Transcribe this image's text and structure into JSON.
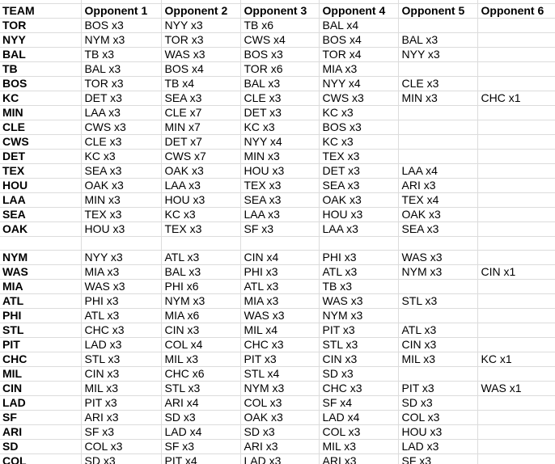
{
  "colors": {
    "gridline": "#dcdcdc",
    "text": "#000000",
    "background": "#ffffff"
  },
  "table": {
    "columns": [
      "TEAM",
      "Opponent 1",
      "Opponent 2",
      "Opponent 3",
      "Opponent 4",
      "Opponent 5",
      "Opponent 6"
    ],
    "rows": [
      {
        "team": "TOR",
        "opponents": [
          "BOS x3",
          "NYY x3",
          "TB x6",
          "BAL x4",
          "",
          ""
        ]
      },
      {
        "team": "NYY",
        "opponents": [
          "NYM x3",
          "TOR x3",
          "CWS x4",
          "BOS x4",
          "BAL x3",
          ""
        ]
      },
      {
        "team": "BAL",
        "opponents": [
          "TB x3",
          "WAS x3",
          "BOS x3",
          "TOR x4",
          "NYY x3",
          ""
        ]
      },
      {
        "team": "TB",
        "opponents": [
          "BAL x3",
          "BOS x4",
          "TOR x6",
          "MIA x3",
          "",
          ""
        ]
      },
      {
        "team": "BOS",
        "opponents": [
          "TOR x3",
          "TB x4",
          "BAL x3",
          "NYY x4",
          "CLE x3",
          ""
        ]
      },
      {
        "team": "KC",
        "opponents": [
          "DET x3",
          "SEA x3",
          "CLE x3",
          "CWS x3",
          "MIN x3",
          "CHC x1"
        ]
      },
      {
        "team": "MIN",
        "opponents": [
          "LAA x3",
          "CLE x7",
          "DET x3",
          "KC x3",
          "",
          ""
        ]
      },
      {
        "team": "CLE",
        "opponents": [
          "CWS x3",
          "MIN x7",
          "KC x3",
          "BOS x3",
          "",
          ""
        ]
      },
      {
        "team": "CWS",
        "opponents": [
          "CLE x3",
          "DET x7",
          "NYY x4",
          "KC x3",
          "",
          ""
        ]
      },
      {
        "team": "DET",
        "opponents": [
          "KC x3",
          "CWS x7",
          "MIN x3",
          "TEX x3",
          "",
          ""
        ]
      },
      {
        "team": "TEX",
        "opponents": [
          "SEA x3",
          "OAK x3",
          "HOU x3",
          "DET x3",
          "LAA x4",
          ""
        ]
      },
      {
        "team": "HOU",
        "opponents": [
          "OAK x3",
          "LAA x3",
          "TEX x3",
          "SEA x3",
          "ARI x3",
          ""
        ]
      },
      {
        "team": "LAA",
        "opponents": [
          "MIN x3",
          "HOU x3",
          "SEA x3",
          "OAK x3",
          "TEX x4",
          ""
        ]
      },
      {
        "team": "SEA",
        "opponents": [
          "TEX x3",
          "KC x3",
          "LAA x3",
          "HOU x3",
          "OAK x3",
          ""
        ]
      },
      {
        "team": "OAK",
        "opponents": [
          "HOU x3",
          "TEX x3",
          "SF x3",
          "LAA x3",
          "SEA x3",
          ""
        ]
      },
      {
        "team": "",
        "opponents": [
          "",
          "",
          "",
          "",
          "",
          ""
        ]
      },
      {
        "team": "NYM",
        "opponents": [
          "NYY x3",
          "ATL x3",
          "CIN x4",
          "PHI x3",
          "WAS x3",
          ""
        ]
      },
      {
        "team": "WAS",
        "opponents": [
          "MIA x3",
          "BAL x3",
          "PHI x3",
          "ATL x3",
          "NYM x3",
          "CIN x1"
        ]
      },
      {
        "team": "MIA",
        "opponents": [
          "WAS x3",
          "PHI x6",
          "ATL x3",
          "TB x3",
          "",
          ""
        ]
      },
      {
        "team": "ATL",
        "opponents": [
          "PHI x3",
          "NYM x3",
          "MIA x3",
          "WAS x3",
          "STL x3",
          ""
        ]
      },
      {
        "team": "PHI",
        "opponents": [
          "ATL x3",
          "MIA x6",
          "WAS x3",
          "NYM x3",
          "",
          ""
        ]
      },
      {
        "team": "STL",
        "opponents": [
          "CHC x3",
          "CIN x3",
          "MIL x4",
          "PIT x3",
          "ATL x3",
          ""
        ]
      },
      {
        "team": "PIT",
        "opponents": [
          "LAD x3",
          "COL x4",
          "CHC x3",
          "STL x3",
          "CIN x3",
          ""
        ]
      },
      {
        "team": "CHC",
        "opponents": [
          "STL x3",
          "MIL x3",
          "PIT x3",
          "CIN x3",
          "MIL x3",
          "KC x1"
        ]
      },
      {
        "team": "MIL",
        "opponents": [
          "CIN x3",
          "CHC x6",
          "STL x4",
          "SD x3",
          "",
          ""
        ]
      },
      {
        "team": "CIN",
        "opponents": [
          "MIL x3",
          "STL x3",
          "NYM x3",
          "CHC x3",
          "PIT x3",
          "WAS x1"
        ]
      },
      {
        "team": "LAD",
        "opponents": [
          "PIT x3",
          "ARI x4",
          "COL x3",
          "SF x4",
          "SD x3",
          ""
        ]
      },
      {
        "team": "SF",
        "opponents": [
          "ARI x3",
          "SD x3",
          "OAK x3",
          "LAD x4",
          "COL x3",
          ""
        ]
      },
      {
        "team": "ARI",
        "opponents": [
          "SF x3",
          "LAD x4",
          "SD x3",
          "COL x3",
          "HOU x3",
          ""
        ]
      },
      {
        "team": "SD",
        "opponents": [
          "COL x3",
          "SF x3",
          "ARI x3",
          "MIL x3",
          "LAD x3",
          ""
        ]
      },
      {
        "team": "COL",
        "opponents": [
          "SD x3",
          "PIT x4",
          "LAD x3",
          "ARI x3",
          "SF x3",
          ""
        ]
      }
    ]
  }
}
